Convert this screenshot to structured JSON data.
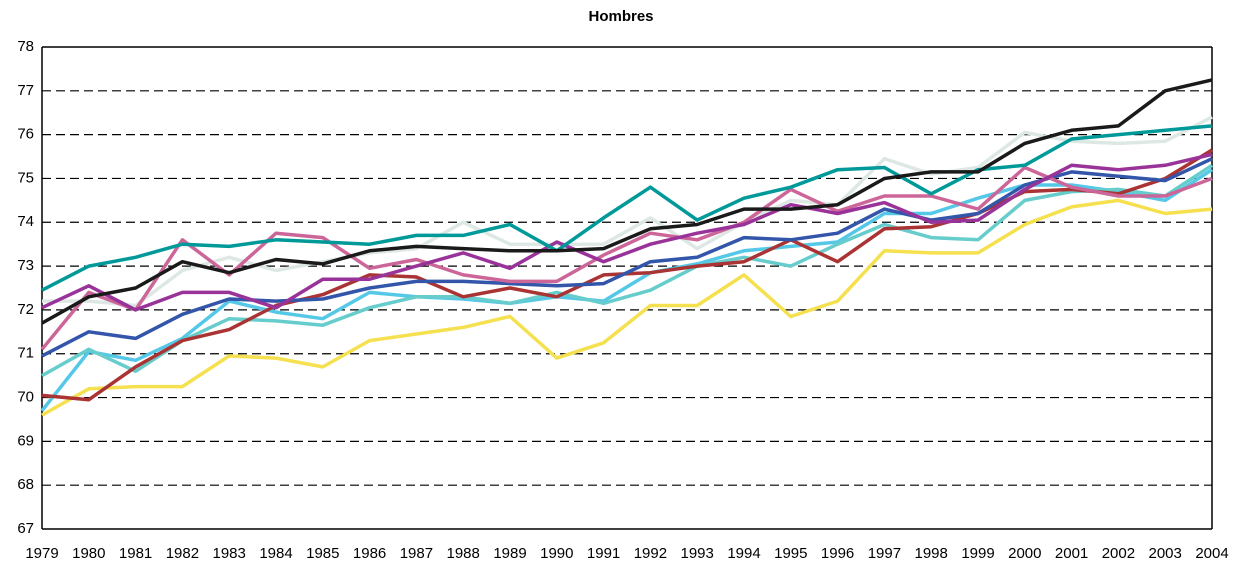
{
  "chart_data": {
    "type": "line",
    "title": "Hombres",
    "categories": [
      "1979",
      "1980",
      "1981",
      "1982",
      "1983",
      "1984",
      "1985",
      "1986",
      "1987",
      "1988",
      "1989",
      "1990",
      "1991",
      "1992",
      "1993",
      "1994",
      "1995",
      "1996",
      "1997",
      "1998",
      "1999",
      "2000",
      "2001",
      "2002",
      "2003",
      "2004"
    ],
    "ylim": [
      67,
      78
    ],
    "yticks": [
      67,
      68,
      69,
      70,
      71,
      72,
      73,
      74,
      75,
      76,
      77,
      78
    ],
    "grid": true,
    "series": [
      {
        "color": "#dde8e4",
        "values": [
          72.2,
          72.2,
          72.1,
          72.9,
          73.2,
          72.9,
          73.1,
          73.3,
          73.4,
          74.0,
          73.5,
          73.5,
          73.5,
          74.1,
          73.4,
          74.0,
          74.5,
          74.4,
          75.45,
          75.1,
          75.25,
          76.05,
          75.85,
          75.8,
          75.85,
          76.4
        ]
      },
      {
        "color": "#f5e050",
        "values": [
          69.6,
          70.2,
          70.25,
          70.25,
          70.95,
          70.9,
          70.7,
          71.3,
          71.45,
          71.6,
          71.85,
          70.9,
          71.25,
          72.1,
          72.1,
          72.8,
          71.85,
          72.2,
          73.35,
          73.3,
          73.3,
          73.95,
          74.35,
          74.5,
          74.2,
          74.3
        ]
      },
      {
        "color": "#55c8e8",
        "values": [
          69.7,
          71.05,
          70.85,
          71.35,
          72.2,
          71.95,
          71.8,
          72.4,
          72.3,
          72.25,
          72.15,
          72.3,
          72.2,
          72.85,
          73.05,
          73.35,
          73.45,
          73.55,
          74.2,
          74.2,
          74.55,
          74.85,
          74.85,
          74.7,
          74.5,
          75.2
        ]
      },
      {
        "color": "#66cccc",
        "values": [
          70.5,
          71.1,
          70.6,
          71.3,
          71.8,
          71.75,
          71.65,
          72.05,
          72.3,
          72.3,
          72.15,
          72.4,
          72.15,
          72.45,
          73.0,
          73.2,
          73.0,
          73.5,
          73.95,
          73.65,
          73.6,
          74.5,
          74.7,
          74.75,
          74.6,
          75.3
        ]
      },
      {
        "color": "#aa3333",
        "values": [
          70.05,
          69.95,
          70.7,
          71.3,
          71.55,
          72.1,
          72.35,
          72.8,
          72.75,
          72.3,
          72.5,
          72.3,
          72.8,
          72.85,
          73.0,
          73.1,
          73.6,
          73.1,
          73.85,
          73.9,
          74.2,
          74.7,
          74.75,
          74.65,
          75.0,
          75.65
        ]
      },
      {
        "color": "#3355aa",
        "values": [
          70.95,
          71.5,
          71.35,
          71.9,
          72.25,
          72.2,
          72.25,
          72.5,
          72.65,
          72.65,
          72.6,
          72.55,
          72.6,
          73.1,
          73.2,
          73.65,
          73.6,
          73.75,
          74.3,
          74.05,
          74.2,
          74.85,
          75.15,
          75.05,
          74.95,
          75.45
        ]
      },
      {
        "color": "#cc6699",
        "values": [
          71.1,
          72.4,
          72.0,
          73.6,
          72.8,
          73.75,
          73.65,
          72.95,
          73.15,
          72.8,
          72.65,
          72.65,
          73.25,
          73.75,
          73.6,
          74.0,
          74.75,
          74.25,
          74.6,
          74.6,
          74.3,
          75.25,
          74.8,
          74.6,
          74.6,
          75.0
        ]
      },
      {
        "color": "#993399",
        "values": [
          72.05,
          72.55,
          72.0,
          72.4,
          72.4,
          72.05,
          72.7,
          72.7,
          73.0,
          73.3,
          72.95,
          73.55,
          73.1,
          73.5,
          73.75,
          73.95,
          74.4,
          74.2,
          74.45,
          74.0,
          74.05,
          74.75,
          75.3,
          75.2,
          75.3,
          75.55
        ]
      },
      {
        "color": "#009999",
        "values": [
          72.45,
          73.0,
          73.2,
          73.5,
          73.45,
          73.6,
          73.55,
          73.5,
          73.7,
          73.7,
          73.95,
          73.35,
          74.1,
          74.8,
          74.05,
          74.55,
          74.8,
          75.2,
          75.25,
          74.65,
          75.2,
          75.3,
          75.9,
          76.0,
          76.1,
          76.2
        ]
      },
      {
        "color": "#1a1a1a",
        "values": [
          71.7,
          72.3,
          72.5,
          73.1,
          72.85,
          73.15,
          73.05,
          73.35,
          73.45,
          73.4,
          73.35,
          73.35,
          73.4,
          73.85,
          73.95,
          74.3,
          74.3,
          74.4,
          75.0,
          75.15,
          75.15,
          75.8,
          76.1,
          76.2,
          77.0,
          77.25
        ]
      }
    ]
  }
}
